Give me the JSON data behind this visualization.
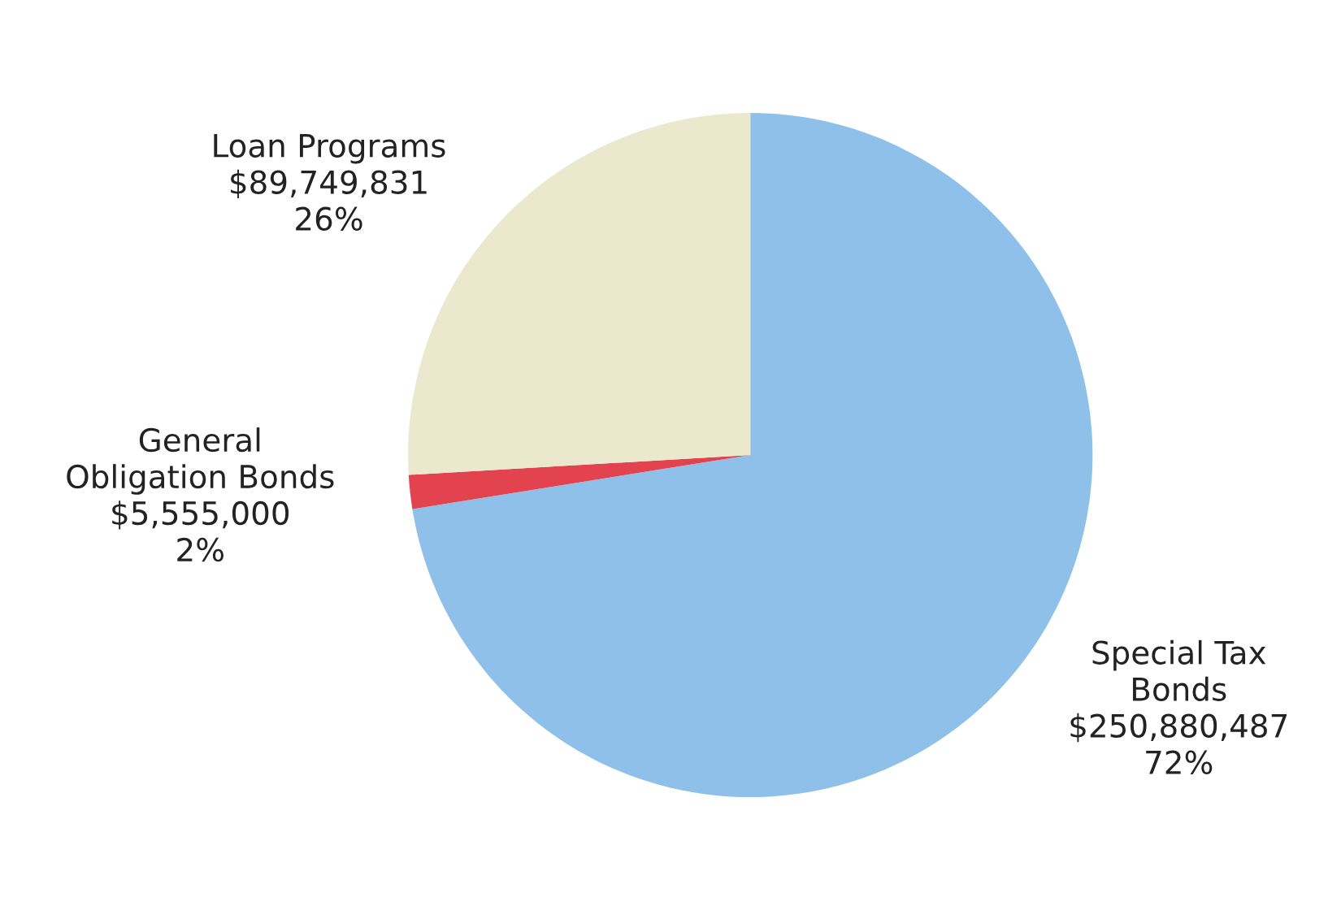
{
  "chart_data": {
    "type": "pie",
    "categories": [
      "Special Tax\nBonds",
      "General\nObligation Bonds",
      "Loan Programs"
    ],
    "values": [
      250880487,
      5555000,
      89749831
    ],
    "colors": [
      "#8ec0ea",
      "#e2434f",
      "#ebe9cd"
    ],
    "value_labels": [
      "$250,880,487\n72%",
      "$5,555,000\n2%",
      "$89,749,831\n26%"
    ],
    "legend": false
  }
}
